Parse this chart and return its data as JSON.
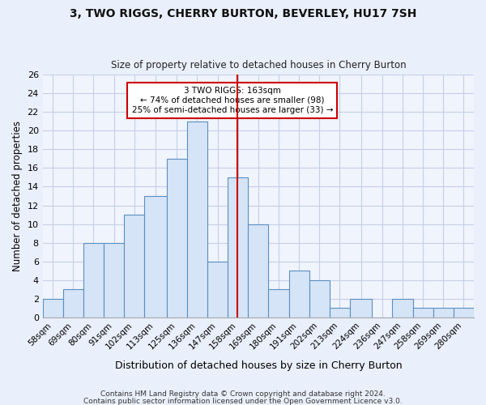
{
  "title": "3, TWO RIGGS, CHERRY BURTON, BEVERLEY, HU17 7SH",
  "subtitle": "Size of property relative to detached houses in Cherry Burton",
  "xlabel": "Distribution of detached houses by size in Cherry Burton",
  "ylabel_full": "Number of detached properties",
  "bin_labels": [
    "58sqm",
    "69sqm",
    "80sqm",
    "91sqm",
    "102sqm",
    "113sqm",
    "125sqm",
    "136sqm",
    "147sqm",
    "158sqm",
    "169sqm",
    "180sqm",
    "191sqm",
    "202sqm",
    "213sqm",
    "224sqm",
    "236sqm",
    "247sqm",
    "258sqm",
    "269sqm",
    "280sqm"
  ],
  "bin_lefts": [
    58,
    69,
    80,
    91,
    102,
    113,
    125,
    136,
    147,
    158,
    169,
    180,
    191,
    202,
    213,
    224,
    236,
    247,
    258,
    269,
    280
  ],
  "bin_widths": [
    11,
    11,
    11,
    11,
    11,
    12,
    11,
    11,
    11,
    11,
    11,
    11,
    11,
    11,
    11,
    12,
    11,
    11,
    11,
    11,
    11
  ],
  "counts": [
    2,
    3,
    8,
    8,
    11,
    13,
    17,
    21,
    6,
    15,
    10,
    3,
    5,
    4,
    1,
    2,
    0,
    2,
    1,
    1,
    1
  ],
  "property_size": 163,
  "bar_facecolor": "#d6e4f7",
  "bar_edgecolor": "#5a8fc2",
  "vline_color": "#cc0000",
  "annotation_line1": "3 TWO RIGGS: 163sqm",
  "annotation_line2": "← 74% of detached houses are smaller (98)",
  "annotation_line3": "25% of semi-detached houses are larger (33) →",
  "annotation_box_edgecolor": "#cc0000",
  "annotation_box_facecolor": "white",
  "ylim": [
    0,
    26
  ],
  "yticks": [
    0,
    2,
    4,
    6,
    8,
    10,
    12,
    14,
    16,
    18,
    20,
    22,
    24,
    26
  ],
  "footer1": "Contains HM Land Registry data © Crown copyright and database right 2024.",
  "footer2": "Contains public sector information licensed under the Open Government Licence v3.0.",
  "bg_color": "#eaf0fb",
  "plot_bg_color": "#f0f4fc",
  "grid_color": "#c5cfe8"
}
